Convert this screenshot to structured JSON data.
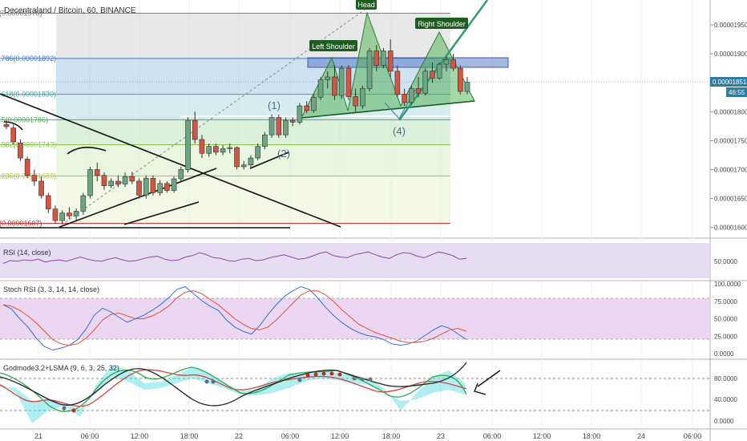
{
  "header": {
    "title": "Decentraland / Bitcoin, 60, BINANCE"
  },
  "main_pane": {
    "y_ticks": [
      "0.00001950",
      "0.00001900",
      "0.00001850",
      "0.00001800",
      "0.00001750",
      "0.00001700",
      "0.00001650",
      "0.00001600"
    ],
    "price_badge": "0.00001851",
    "countdown_badge": "46:55",
    "fib_labels": [
      "1(0.00001970)",
      "0.786(0.00001892)",
      "0.618(0.00001830)",
      "0.5(0.00001786)",
      "0.382(0.00001743)",
      "0.236(0.00001689)",
      "0(0.00001607)"
    ],
    "pattern_labels": {
      "head": "Head",
      "left_shoulder": "Left Shoulder",
      "right_shoulder": "Right Shoulder"
    },
    "wave_labels": [
      "(1)",
      "(2)",
      "(4)"
    ]
  },
  "rsi_pane": {
    "title": "RSI (14, close)",
    "y_ticks": [
      "50.0000"
    ]
  },
  "stoch_pane": {
    "title": "Stoch RSI (3, 3, 14, 14, close)",
    "y_ticks": [
      "100.0000",
      "75.0000",
      "50.0000",
      "25.0000",
      "0.0000"
    ]
  },
  "godmode_pane": {
    "title": "Godmode3.2+LSMA (9, 6, 3, 25, 32)",
    "y_ticks": [
      "80.0000",
      "40.0000",
      "0.0000"
    ]
  },
  "x_axis": {
    "ticks": [
      "21",
      "06:00",
      "12:00",
      "18:00",
      "22",
      "06:00",
      "12:00",
      "18:00",
      "23",
      "06:00",
      "12:00",
      "18:00",
      "24",
      "06:00"
    ]
  },
  "colors": {
    "up": "#6ba583",
    "down": "#d75442",
    "accent": "#2e7d9f",
    "pattern_fill": "#4caf50",
    "rsi_band": "#e1d4f0",
    "stoch_band": "#ead3f2"
  },
  "chart_data": {
    "type": "candlestick",
    "symbol": "Decentraland / Bitcoin",
    "interval": "60",
    "exchange": "BINANCE",
    "ylim": [
      1.58e-05,
      1.98e-05
    ],
    "last_price": 1.851e-05,
    "fibonacci": [
      {
        "level": 1,
        "price": 1.97e-05
      },
      {
        "level": 0.786,
        "price": 1.892e-05
      },
      {
        "level": 0.618,
        "price": 1.83e-05
      },
      {
        "level": 0.5,
        "price": 1.786e-05
      },
      {
        "level": 0.382,
        "price": 1.743e-05
      },
      {
        "level": 0.236,
        "price": 1.689e-05
      },
      {
        "level": 0,
        "price": 1.607e-05
      }
    ],
    "candles": [
      {
        "o": 1.778,
        "h": 1.785,
        "l": 1.77,
        "c": 1.774
      },
      {
        "o": 1.772,
        "h": 1.778,
        "l": 1.744,
        "c": 1.748
      },
      {
        "o": 1.746,
        "h": 1.752,
        "l": 1.715,
        "c": 1.72
      },
      {
        "o": 1.718,
        "h": 1.722,
        "l": 1.686,
        "c": 1.69
      },
      {
        "o": 1.69,
        "h": 1.7,
        "l": 1.672,
        "c": 1.68
      },
      {
        "o": 1.68,
        "h": 1.688,
        "l": 1.65,
        "c": 1.655
      },
      {
        "o": 1.655,
        "h": 1.66,
        "l": 1.625,
        "c": 1.632
      },
      {
        "o": 1.632,
        "h": 1.638,
        "l": 1.607,
        "c": 1.612
      },
      {
        "o": 1.612,
        "h": 1.63,
        "l": 1.607,
        "c": 1.625
      },
      {
        "o": 1.625,
        "h": 1.635,
        "l": 1.615,
        "c": 1.62
      },
      {
        "o": 1.62,
        "h": 1.633,
        "l": 1.612,
        "c": 1.628
      },
      {
        "o": 1.628,
        "h": 1.66,
        "l": 1.622,
        "c": 1.655
      },
      {
        "o": 1.655,
        "h": 1.705,
        "l": 1.65,
        "c": 1.7
      },
      {
        "o": 1.7,
        "h": 1.712,
        "l": 1.68,
        "c": 1.69
      },
      {
        "o": 1.69,
        "h": 1.695,
        "l": 1.665,
        "c": 1.672
      },
      {
        "o": 1.672,
        "h": 1.685,
        "l": 1.668,
        "c": 1.68
      },
      {
        "o": 1.68,
        "h": 1.69,
        "l": 1.67,
        "c": 1.675
      },
      {
        "o": 1.675,
        "h": 1.695,
        "l": 1.67,
        "c": 1.688
      },
      {
        "o": 1.688,
        "h": 1.696,
        "l": 1.675,
        "c": 1.68
      },
      {
        "o": 1.68,
        "h": 1.685,
        "l": 1.65,
        "c": 1.656
      },
      {
        "o": 1.656,
        "h": 1.69,
        "l": 1.65,
        "c": 1.685
      },
      {
        "o": 1.685,
        "h": 1.69,
        "l": 1.655,
        "c": 1.66
      },
      {
        "o": 1.66,
        "h": 1.682,
        "l": 1.655,
        "c": 1.676
      },
      {
        "o": 1.676,
        "h": 1.68,
        "l": 1.66,
        "c": 1.664
      },
      {
        "o": 1.664,
        "h": 1.688,
        "l": 1.66,
        "c": 1.684
      },
      {
        "o": 1.684,
        "h": 1.705,
        "l": 1.678,
        "c": 1.7
      },
      {
        "o": 1.7,
        "h": 1.79,
        "l": 1.695,
        "c": 1.785
      },
      {
        "o": 1.785,
        "h": 1.8,
        "l": 1.745,
        "c": 1.752
      },
      {
        "o": 1.752,
        "h": 1.76,
        "l": 1.72,
        "c": 1.728
      },
      {
        "o": 1.728,
        "h": 1.745,
        "l": 1.722,
        "c": 1.74
      },
      {
        "o": 1.74,
        "h": 1.745,
        "l": 1.725,
        "c": 1.73
      },
      {
        "o": 1.73,
        "h": 1.742,
        "l": 1.725,
        "c": 1.736
      },
      {
        "o": 1.736,
        "h": 1.745,
        "l": 1.728,
        "c": 1.738
      },
      {
        "o": 1.738,
        "h": 1.74,
        "l": 1.7,
        "c": 1.705
      },
      {
        "o": 1.705,
        "h": 1.715,
        "l": 1.7,
        "c": 1.708
      },
      {
        "o": 1.708,
        "h": 1.725,
        "l": 1.704,
        "c": 1.72
      },
      {
        "o": 1.72,
        "h": 1.745,
        "l": 1.716,
        "c": 1.74
      },
      {
        "o": 1.74,
        "h": 1.765,
        "l": 1.735,
        "c": 1.76
      },
      {
        "o": 1.76,
        "h": 1.795,
        "l": 1.755,
        "c": 1.79
      },
      {
        "o": 1.79,
        "h": 1.795,
        "l": 1.755,
        "c": 1.76
      },
      {
        "o": 1.76,
        "h": 1.79,
        "l": 1.755,
        "c": 1.785
      },
      {
        "o": 1.785,
        "h": 1.79,
        "l": 1.775,
        "c": 1.782
      },
      {
        "o": 1.782,
        "h": 1.815,
        "l": 1.778,
        "c": 1.81
      },
      {
        "o": 1.81,
        "h": 1.818,
        "l": 1.798,
        "c": 1.802
      },
      {
        "o": 1.802,
        "h": 1.83,
        "l": 1.798,
        "c": 1.825
      },
      {
        "o": 1.825,
        "h": 1.86,
        "l": 1.82,
        "c": 1.855
      },
      {
        "o": 1.855,
        "h": 1.87,
        "l": 1.84,
        "c": 1.86
      },
      {
        "o": 1.86,
        "h": 1.88,
        "l": 1.82,
        "c": 1.828
      },
      {
        "o": 1.828,
        "h": 1.88,
        "l": 1.822,
        "c": 1.875
      },
      {
        "o": 1.875,
        "h": 1.88,
        "l": 1.82,
        "c": 1.826
      },
      {
        "o": 1.826,
        "h": 1.84,
        "l": 1.8,
        "c": 1.81
      },
      {
        "o": 1.81,
        "h": 1.845,
        "l": 1.805,
        "c": 1.84
      },
      {
        "o": 1.84,
        "h": 1.91,
        "l": 1.835,
        "c": 1.905
      },
      {
        "o": 1.905,
        "h": 1.915,
        "l": 1.87,
        "c": 1.88
      },
      {
        "o": 1.88,
        "h": 1.91,
        "l": 1.875,
        "c": 1.905
      },
      {
        "o": 1.905,
        "h": 1.925,
        "l": 1.86,
        "c": 1.87
      },
      {
        "o": 1.87,
        "h": 1.88,
        "l": 1.825,
        "c": 1.83
      },
      {
        "o": 1.83,
        "h": 1.84,
        "l": 1.81,
        "c": 1.816
      },
      {
        "o": 1.816,
        "h": 1.845,
        "l": 1.812,
        "c": 1.84
      },
      {
        "o": 1.84,
        "h": 1.86,
        "l": 1.825,
        "c": 1.832
      },
      {
        "o": 1.832,
        "h": 1.875,
        "l": 1.828,
        "c": 1.87
      },
      {
        "o": 1.87,
        "h": 1.885,
        "l": 1.85,
        "c": 1.858
      },
      {
        "o": 1.858,
        "h": 1.885,
        "l": 1.855,
        "c": 1.882
      },
      {
        "o": 1.882,
        "h": 1.895,
        "l": 1.87,
        "c": 1.89
      },
      {
        "o": 1.89,
        "h": 1.9,
        "l": 1.87,
        "c": 1.875
      },
      {
        "o": 1.875,
        "h": 1.88,
        "l": 1.83,
        "c": 1.835
      },
      {
        "o": 1.835,
        "h": 1.86,
        "l": 1.83,
        "c": 1.851
      }
    ],
    "candle_scale": 1e-05,
    "rsi": [
      46,
      50,
      49,
      51,
      50,
      52,
      48,
      50,
      51,
      49,
      52,
      55,
      52,
      50,
      49,
      52,
      54,
      51,
      49,
      50,
      53,
      55,
      56,
      52,
      50,
      51,
      55,
      57,
      61,
      58,
      54,
      53,
      50,
      49,
      52,
      53,
      50,
      51,
      54,
      56,
      58,
      55,
      52,
      53,
      56,
      60,
      62,
      57,
      55,
      54,
      58,
      60,
      62,
      58,
      55,
      53,
      58,
      61,
      60,
      56,
      54,
      58,
      62,
      60,
      57,
      52,
      53
    ],
    "stoch_k": [
      70,
      64,
      50,
      38,
      22,
      10,
      5,
      8,
      12,
      20,
      35,
      55,
      65,
      60,
      52,
      45,
      50,
      55,
      62,
      70,
      80,
      92,
      96,
      86,
      76,
      68,
      62,
      48,
      38,
      32,
      28,
      40,
      56,
      70,
      82,
      90,
      96,
      92,
      80,
      66,
      54,
      44,
      36,
      30,
      26,
      24,
      20,
      14,
      12,
      14,
      18,
      26,
      34,
      40,
      36,
      28,
      20
    ],
    "stoch_d": [
      70,
      68,
      62,
      54,
      44,
      32,
      20,
      14,
      12,
      14,
      22,
      34,
      48,
      56,
      58,
      54,
      50,
      50,
      54,
      60,
      68,
      80,
      88,
      90,
      86,
      78,
      70,
      60,
      50,
      42,
      36,
      34,
      38,
      48,
      60,
      72,
      84,
      90,
      90,
      84,
      74,
      62,
      52,
      42,
      36,
      30,
      26,
      22,
      18,
      16,
      16,
      18,
      22,
      28,
      34,
      36,
      32
    ]
  }
}
